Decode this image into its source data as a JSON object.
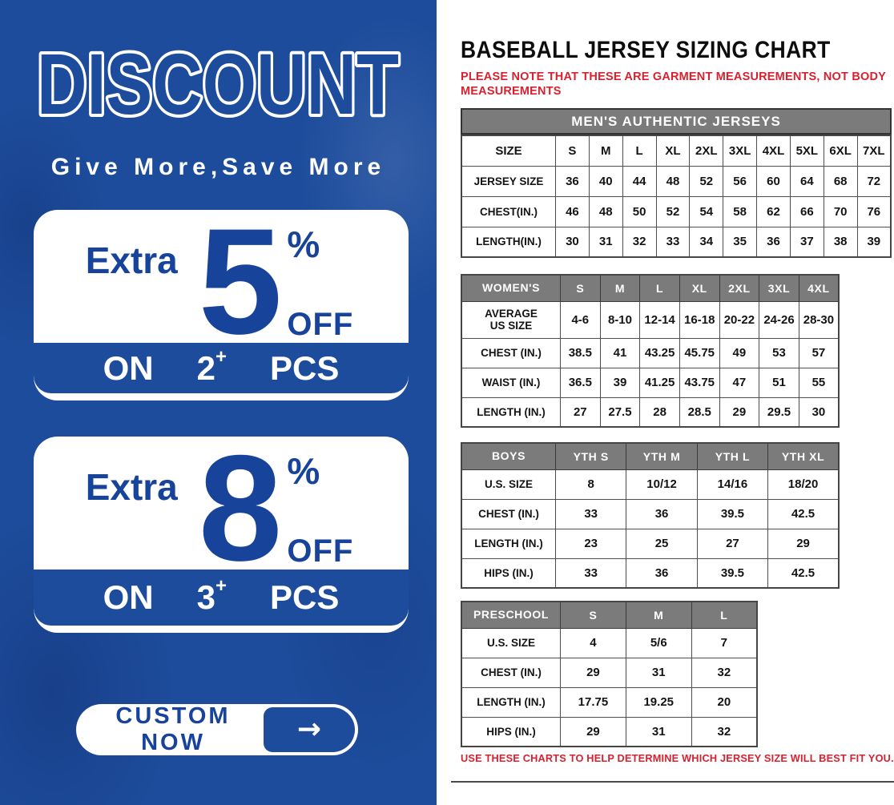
{
  "left_panel": {
    "headline": "DISCOUNT",
    "tagline": "Give More,Save More",
    "offers": [
      {
        "extra": "Extra",
        "percent_value": "5",
        "percent_sign": "%",
        "off": "OFF",
        "on": "ON",
        "quantity": "2",
        "plus": "+",
        "pcs": "PCS"
      },
      {
        "extra": "Extra",
        "percent_value": "8",
        "percent_sign": "%",
        "off": "OFF",
        "on": "ON",
        "quantity": "3",
        "plus": "+",
        "pcs": "PCS"
      }
    ],
    "cta": {
      "label": "CUSTOM NOW",
      "arrow_icon": "→"
    },
    "colors": {
      "background_blue": "#1d4c9c",
      "text_blue": "#17439a",
      "white": "#ffffff"
    }
  },
  "sizing_chart": {
    "title": "BASEBALL JERSEY SIZING CHART",
    "top_note": "PLEASE NOTE THAT THESE ARE GARMENT MEASUREMENTS, NOT BODY MEASUREMENTS",
    "bottom_note": "USE THESE CHARTS TO HELP DETERMINE WHICH JERSEY SIZE WILL BEST FIT YOU.",
    "colors": {
      "header_gray": "#7b7b7b",
      "note_red": "#d8202f",
      "text_black": "#141414"
    },
    "mens": {
      "banner": "MEN'S AUTHENTIC JERSEYS",
      "rows": [
        [
          "SIZE",
          "S",
          "M",
          "L",
          "XL",
          "2XL",
          "3XL",
          "4XL",
          "5XL",
          "6XL",
          "7XL"
        ],
        [
          "JERSEY SIZE",
          "36",
          "40",
          "44",
          "48",
          "52",
          "56",
          "60",
          "64",
          "68",
          "72"
        ],
        [
          "CHEST(IN.)",
          "46",
          "48",
          "50",
          "52",
          "54",
          "58",
          "62",
          "66",
          "70",
          "76"
        ],
        [
          "LENGTH(IN.)",
          "30",
          "31",
          "32",
          "33",
          "34",
          "35",
          "36",
          "37",
          "38",
          "39"
        ]
      ]
    },
    "womens": {
      "rows": [
        [
          "WOMEN'S",
          "S",
          "M",
          "L",
          "XL",
          "2XL",
          "3XL",
          "4XL"
        ],
        [
          "AVERAGE\nUS SIZE",
          "4-6",
          "8-10",
          "12-14",
          "16-18",
          "20-22",
          "24-26",
          "28-30"
        ],
        [
          "CHEST (IN.)",
          "38.5",
          "41",
          "43.25",
          "45.75",
          "49",
          "53",
          "57"
        ],
        [
          "WAIST (IN.)",
          "36.5",
          "39",
          "41.25",
          "43.75",
          "47",
          "51",
          "55"
        ],
        [
          "LENGTH (IN.)",
          "27",
          "27.5",
          "28",
          "28.5",
          "29",
          "29.5",
          "30"
        ]
      ]
    },
    "boys": {
      "rows": [
        [
          "BOYS",
          "YTH S",
          "YTH M",
          "YTH L",
          "YTH XL"
        ],
        [
          "U.S. SIZE",
          "8",
          "10/12",
          "14/16",
          "18/20"
        ],
        [
          "CHEST (IN.)",
          "33",
          "36",
          "39.5",
          "42.5"
        ],
        [
          "LENGTH (IN.)",
          "23",
          "25",
          "27",
          "29"
        ],
        [
          "HIPS (IN.)",
          "33",
          "36",
          "39.5",
          "42.5"
        ]
      ]
    },
    "preschool": {
      "rows": [
        [
          "PRESCHOOL",
          "S",
          "M",
          "L"
        ],
        [
          "U.S. SIZE",
          "4",
          "5/6",
          "7"
        ],
        [
          "CHEST (IN.)",
          "29",
          "31",
          "32"
        ],
        [
          "LENGTH (IN.)",
          "17.75",
          "19.25",
          "20"
        ],
        [
          "HIPS (IN.)",
          "29",
          "31",
          "32"
        ]
      ]
    }
  }
}
